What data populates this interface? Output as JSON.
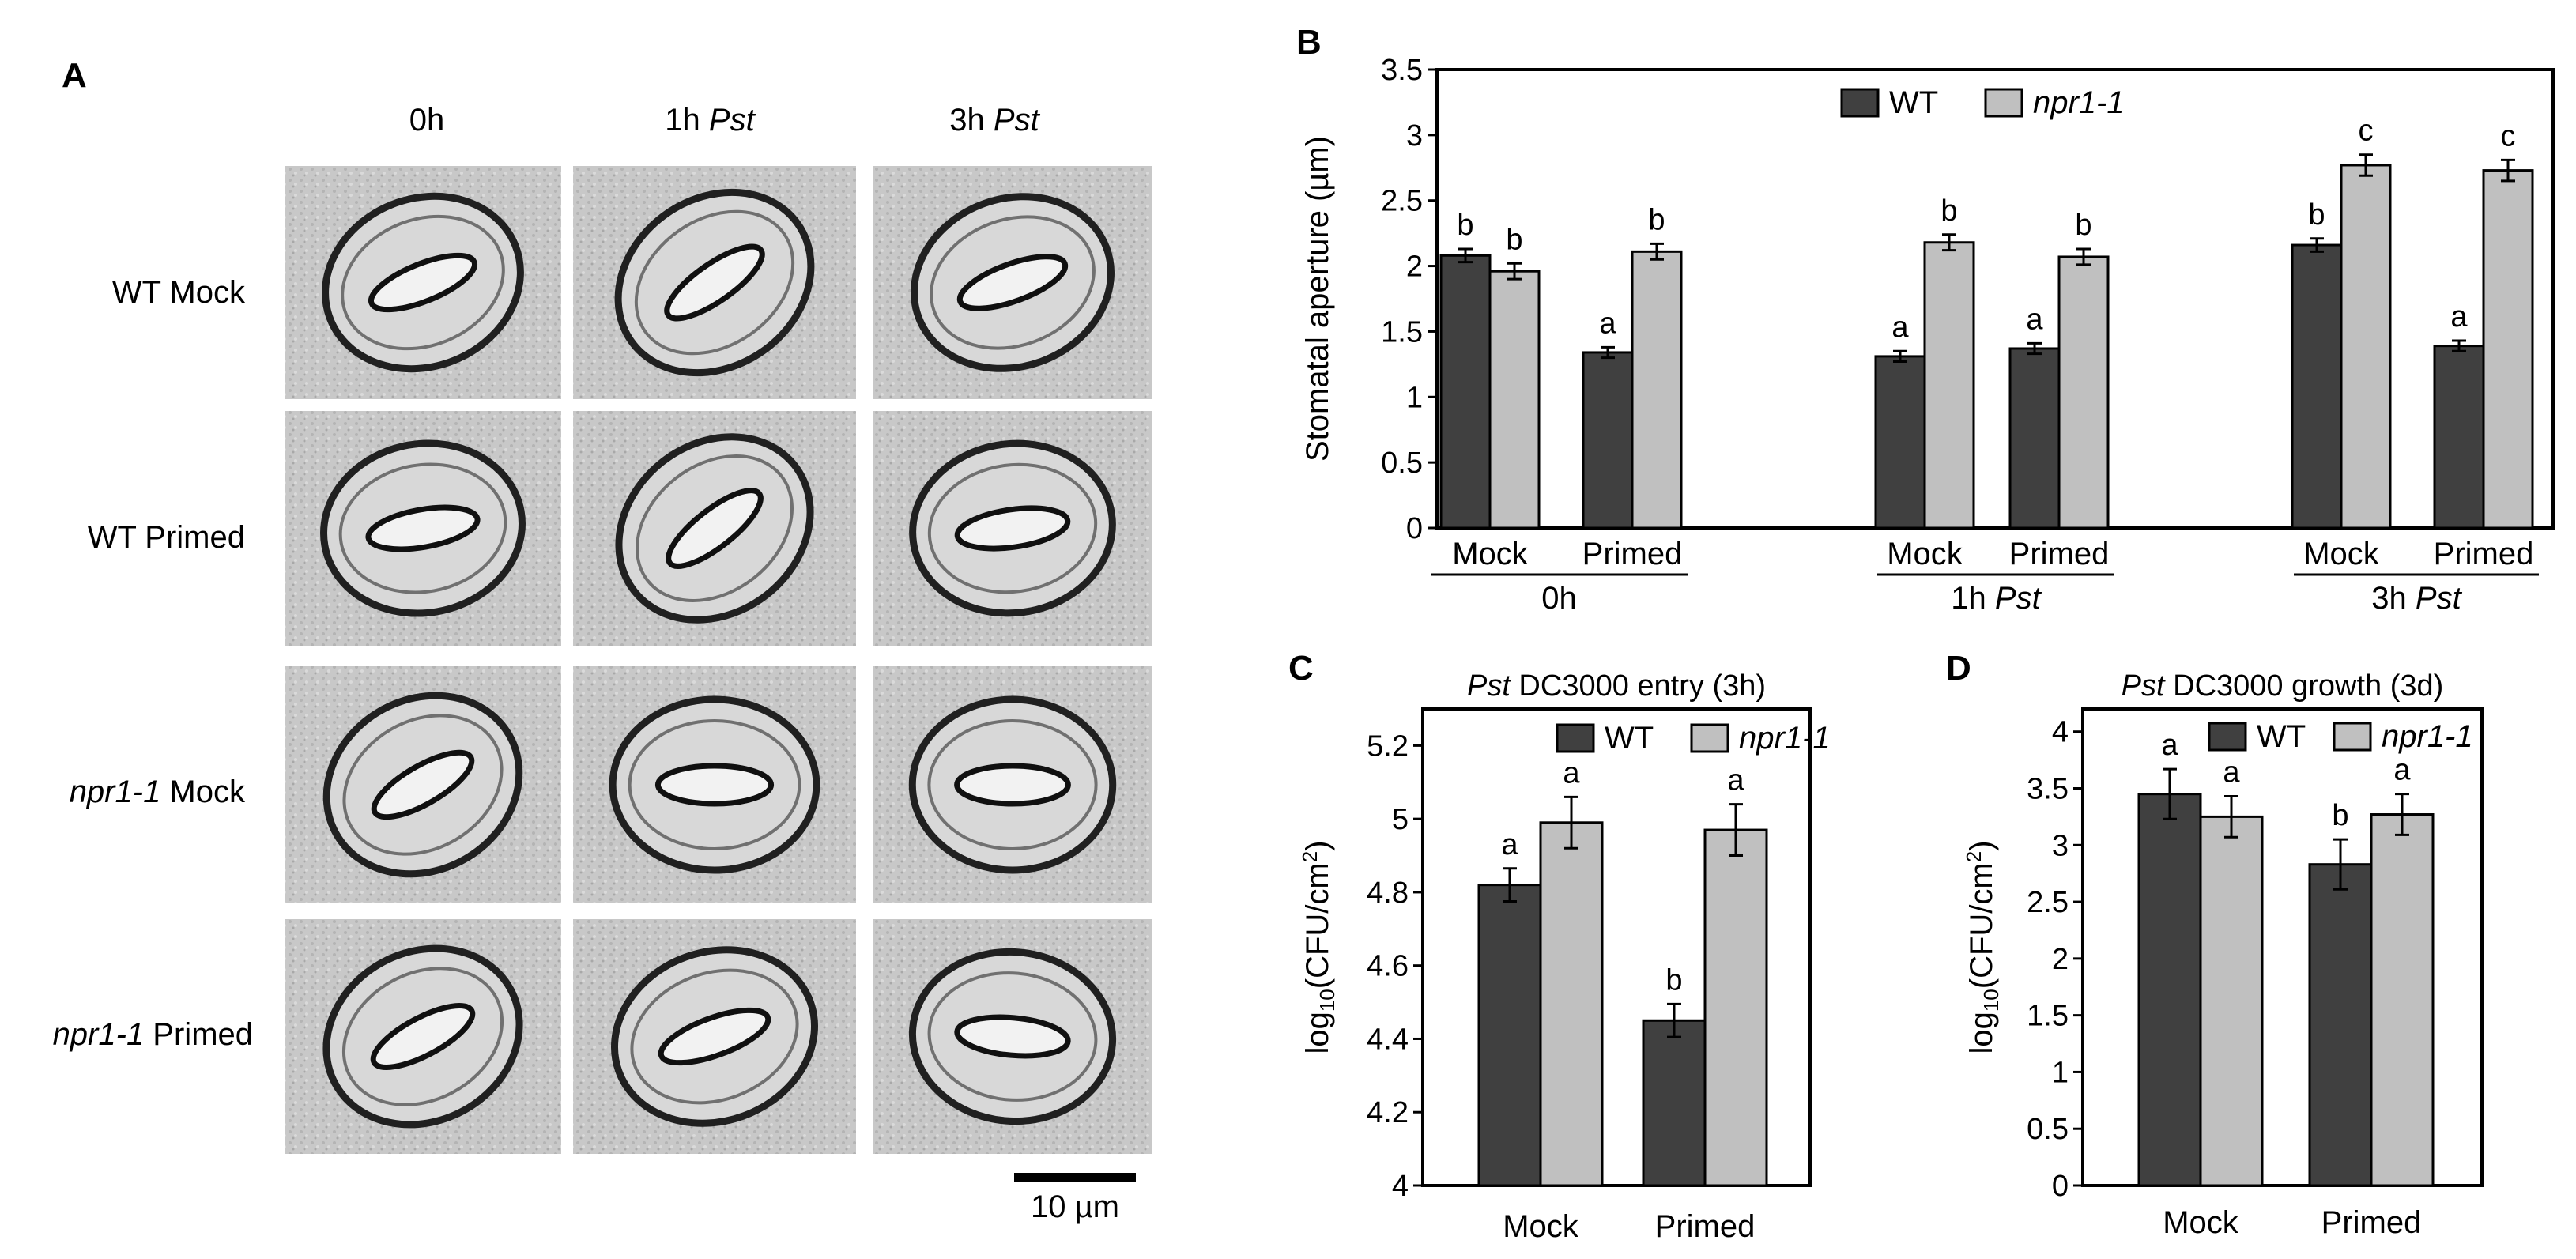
{
  "panels": {
    "A": "A",
    "B": "B",
    "C": "C",
    "D": "D"
  },
  "panel_a": {
    "col_headers": [
      {
        "main": "0h",
        "italic": ""
      },
      {
        "main": "1h ",
        "italic": "Pst"
      },
      {
        "main": "3h ",
        "italic": "Pst"
      }
    ],
    "row_labels": [
      {
        "italic": "",
        "main": "WT  Mock"
      },
      {
        "italic": "",
        "main": "WT  Primed"
      },
      {
        "italic": "npr1-1",
        "main": "  Mock"
      },
      {
        "italic": "npr1-1",
        "main": "  Primed"
      }
    ],
    "scale_bar": "10 µm"
  },
  "colors": {
    "wt": "#404040",
    "npr1": "#c0c0c0",
    "error_bar": "#000000"
  },
  "chart_data": [
    {
      "id": "B",
      "type": "bar",
      "ylabel": "Stomatal aperture (µm)",
      "ylim": [
        0,
        3.5
      ],
      "yticks": [
        "0",
        "0.5",
        "1",
        "1.5",
        "2",
        "2.5",
        "3",
        "3.5"
      ],
      "legend": [
        "WT",
        "npr1-1"
      ],
      "legend_position": "top-center",
      "categories": [
        "Mock",
        "Primed",
        "Mock",
        "Primed",
        "Mock",
        "Primed"
      ],
      "groups": [
        {
          "label": "0h",
          "italic": ""
        },
        {
          "label": "1h ",
          "italic": "Pst"
        },
        {
          "label": "3h ",
          "italic": "Pst"
        }
      ],
      "series": [
        {
          "name": "WT",
          "values": [
            2.08,
            1.34,
            1.31,
            1.37,
            2.16,
            1.39
          ],
          "errors": [
            0.05,
            0.04,
            0.04,
            0.04,
            0.05,
            0.04
          ],
          "letters": [
            "b",
            "a",
            "a",
            "a",
            "b",
            "a"
          ]
        },
        {
          "name": "npr1-1",
          "values": [
            1.96,
            2.11,
            2.18,
            2.07,
            2.77,
            2.73
          ],
          "errors": [
            0.06,
            0.06,
            0.06,
            0.06,
            0.08,
            0.08
          ],
          "letters": [
            "b",
            "b",
            "b",
            "b",
            "c",
            "c"
          ]
        }
      ]
    },
    {
      "id": "C",
      "type": "bar",
      "title": "DC3000 entry (3h)",
      "title_italic": "Pst",
      "ylabel": "log10(CFU/cm2)",
      "ylim": [
        4,
        5.3
      ],
      "yticks": [
        "4",
        "4.2",
        "4.4",
        "4.6",
        "4.8",
        "5",
        "5.2"
      ],
      "legend": [
        "WT",
        "npr1-1"
      ],
      "legend_position": "top-center",
      "categories": [
        "Mock",
        "Primed"
      ],
      "series": [
        {
          "name": "WT",
          "values": [
            4.82,
            4.45
          ],
          "errors": [
            0.045,
            0.045
          ],
          "letters": [
            "a",
            "b"
          ]
        },
        {
          "name": "npr1-1",
          "values": [
            4.99,
            4.97
          ],
          "errors": [
            0.07,
            0.07
          ],
          "letters": [
            "a",
            "a"
          ]
        }
      ]
    },
    {
      "id": "D",
      "type": "bar",
      "title": "DC3000 growth (3d)",
      "title_italic": "Pst",
      "ylabel": "log10(CFU/cm2)",
      "ylim": [
        0,
        4.2
      ],
      "yticks": [
        "0",
        "0.5",
        "1",
        "1.5",
        "2",
        "2.5",
        "3",
        "3.5",
        "4"
      ],
      "legend": [
        "WT",
        "npr1-1"
      ],
      "legend_position": "top-center",
      "categories": [
        "Mock",
        "Primed"
      ],
      "series": [
        {
          "name": "WT",
          "values": [
            3.45,
            2.83
          ],
          "errors": [
            0.22,
            0.22
          ],
          "letters": [
            "a",
            "b"
          ]
        },
        {
          "name": "npr1-1",
          "values": [
            3.25,
            3.27
          ],
          "errors": [
            0.18,
            0.18
          ],
          "letters": [
            "a",
            "a"
          ]
        }
      ]
    }
  ]
}
